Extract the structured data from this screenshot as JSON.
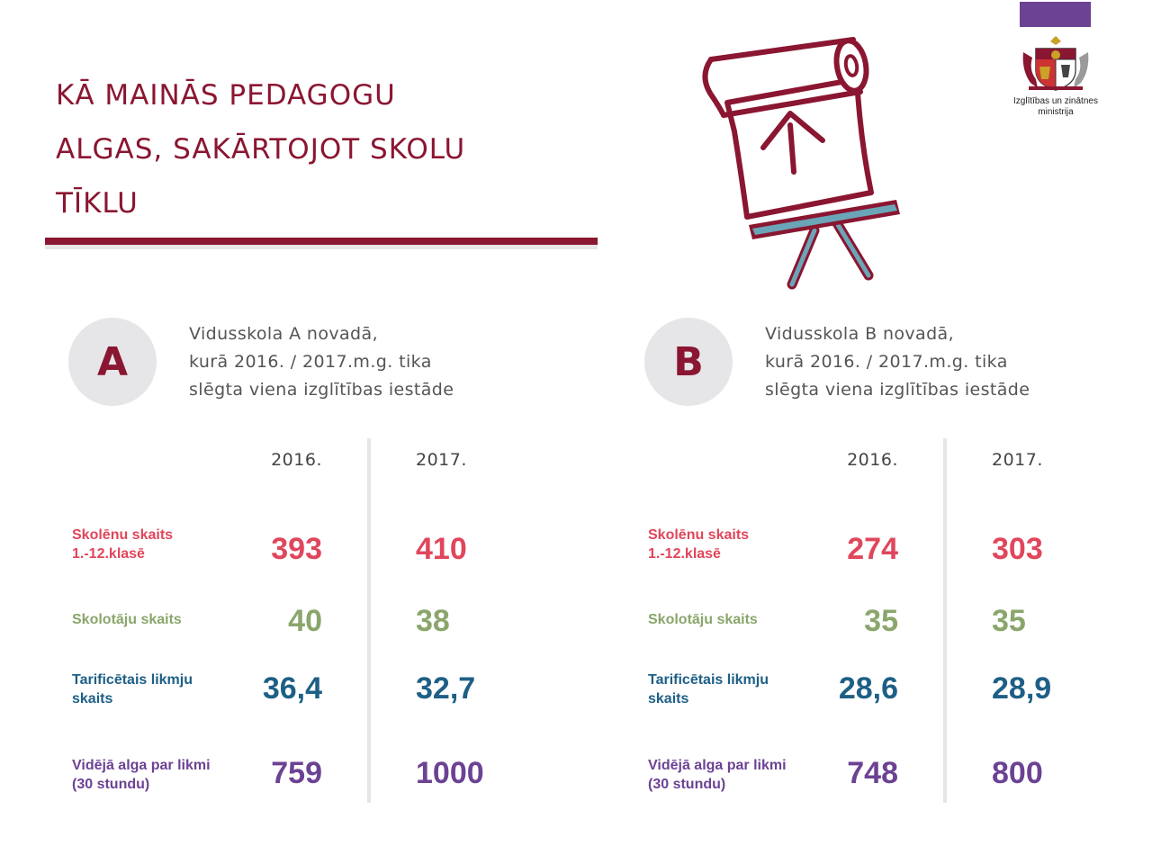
{
  "title_lines": [
    "KĀ MAINĀS PEDAGOGU",
    "ALGAS, SAKĀRTOJOT SKOLU",
    "TĪKLU"
  ],
  "logo": {
    "text_lines": [
      "Izglītības un zinātnes",
      "ministrija"
    ]
  },
  "colors": {
    "brand": "#8a1631",
    "purple": "#6c4294",
    "teal": "#6aa6b8",
    "pupils": "#e0465c",
    "teachers": "#8aa66b",
    "rates": "#1e5f86",
    "salary": "#6c4294"
  },
  "icons": [
    "presentation-easel-icon",
    "coat-of-arms-icon"
  ],
  "years": [
    "2016.",
    "2017."
  ],
  "school_a": {
    "badge": "A",
    "desc_lines": [
      "Vidusskola A novadā,",
      "kurā 2016. / 2017.m.g. tika",
      "slēgta viena izglītības iestāde"
    ],
    "rows": [
      {
        "label_lines": [
          "Skolēnu skaits",
          "1.-12.klasē"
        ],
        "v2016": "393",
        "v2017": "410"
      },
      {
        "label_lines": [
          "Skolotāju skaits"
        ],
        "v2016": "40",
        "v2017": "38"
      },
      {
        "label_lines": [
          "Tarificētais likmju",
          "skaits"
        ],
        "v2016": "36,4",
        "v2017": "32,7"
      },
      {
        "label_lines": [
          "Vidējā alga par likmi",
          "(30 stundu)"
        ],
        "v2016": "759",
        "v2017": "1000"
      }
    ]
  },
  "school_b": {
    "badge": "B",
    "desc_lines": [
      "Vidusskola B novadā,",
      "kurā 2016. / 2017.m.g. tika",
      "slēgta viena izglītības iestāde"
    ],
    "rows": [
      {
        "label_lines": [
          "Skolēnu skaits",
          "1.-12.klasē"
        ],
        "v2016": "274",
        "v2017": "303"
      },
      {
        "label_lines": [
          "Skolotāju skaits"
        ],
        "v2016": "35",
        "v2017": "35"
      },
      {
        "label_lines": [
          "Tarificētais likmju",
          "skaits"
        ],
        "v2016": "28,6",
        "v2017": "28,9"
      },
      {
        "label_lines": [
          "Vidējā alga par likmi",
          "(30 stundu)"
        ],
        "v2016": "748",
        "v2017": "800"
      }
    ]
  }
}
